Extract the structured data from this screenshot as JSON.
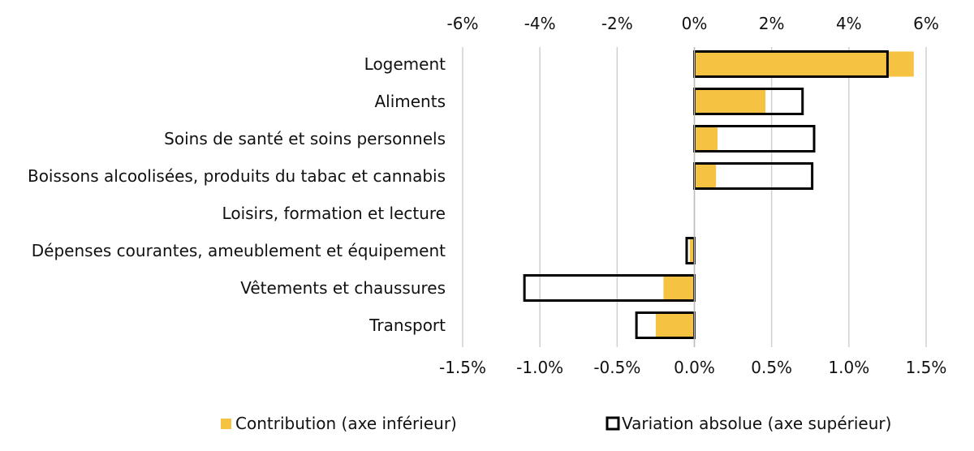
{
  "chart_data": {
    "type": "bar",
    "orientation": "horizontal",
    "categories": [
      "Logement",
      "Aliments",
      "Soins de santé et soins personnels",
      "Boissons alcoolisées, produits du tabac et cannabis",
      "Loisirs, formation et lecture",
      "Dépenses courantes, ameublement et équipement",
      "Vêtements et chaussures",
      "Transport"
    ],
    "series": [
      {
        "name": "Contribution (axe inférieur)",
        "axis": "bottom",
        "style": "filled",
        "color": "#F5C242",
        "values": [
          1.42,
          0.46,
          0.15,
          0.14,
          0.0,
          -0.03,
          -0.2,
          -0.25
        ]
      },
      {
        "name": "Variation absolue (axe supérieur)",
        "axis": "top",
        "style": "outline",
        "color": "#000000",
        "values": [
          5.0,
          2.8,
          3.1,
          3.05,
          0.0,
          -0.2,
          -4.4,
          -1.5
        ]
      }
    ],
    "bottom_axis": {
      "min": -1.5,
      "max": 1.5,
      "ticks": [
        -1.5,
        -1.0,
        -0.5,
        0.0,
        0.5,
        1.0,
        1.5
      ],
      "tick_labels": [
        "-1.5%",
        "-1.0%",
        "-0.5%",
        "0.0%",
        "0.5%",
        "1.0%",
        "1.5%"
      ]
    },
    "top_axis": {
      "min": -6,
      "max": 6,
      "ticks": [
        -6,
        -4,
        -2,
        0,
        2,
        4,
        6
      ],
      "tick_labels": [
        "-6%",
        "-4%",
        "-2%",
        "0%",
        "2%",
        "4%",
        "6%"
      ]
    },
    "grid": true,
    "grid_color": "#d0d0d0",
    "legend_position": "bottom"
  }
}
